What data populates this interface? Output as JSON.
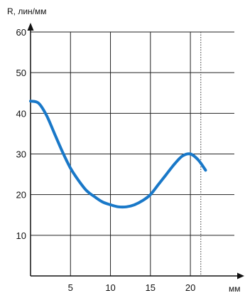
{
  "chart_data": {
    "type": "line",
    "title": "",
    "xlabel": "мм",
    "ylabel": "R, лин/мм",
    "xlim": [
      0,
      25.5
    ],
    "ylim": [
      0,
      60
    ],
    "x_ticks": [
      "5",
      "10",
      "15",
      "20"
    ],
    "x_tick_values": [
      5,
      10,
      15,
      20
    ],
    "y_ticks": [
      "10",
      "20",
      "30",
      "40",
      "50",
      "60"
    ],
    "y_tick_values": [
      10,
      20,
      30,
      40,
      50,
      60
    ],
    "grid": true,
    "reference_line_x": 21.3,
    "series": [
      {
        "x": [
          0,
          1,
          2,
          3,
          4,
          5,
          6,
          7,
          8,
          9,
          10,
          11,
          12,
          13,
          14,
          15,
          16,
          17,
          18,
          19,
          20,
          21,
          21.9
        ],
        "values": [
          43,
          42.5,
          39.5,
          35,
          30.5,
          26.5,
          23.5,
          21,
          19.5,
          18.2,
          17.5,
          17,
          17,
          17.5,
          18.5,
          20,
          22.5,
          25,
          27.5,
          29.5,
          30,
          28.5,
          26
        ],
        "color": "#1978c8"
      }
    ]
  }
}
